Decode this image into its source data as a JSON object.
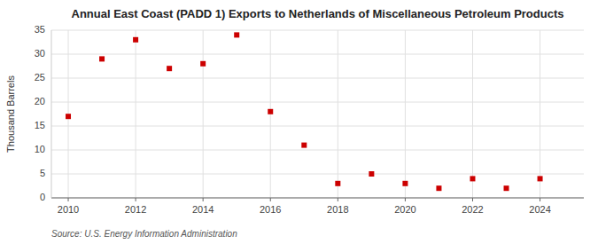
{
  "chart_data": {
    "type": "scatter",
    "title": "Annual East Coast (PADD 1) Exports to Netherlands of Miscellaneous Petroleum Products",
    "y_label": "Thousand Barrels",
    "source": "Source: U.S. Energy Information Administration",
    "x": [
      2010,
      2011,
      2012,
      2013,
      2014,
      2015,
      2016,
      2017,
      2018,
      2019,
      2020,
      2021,
      2022,
      2023,
      2024
    ],
    "values": [
      17,
      29,
      33,
      27,
      28,
      34,
      18,
      11,
      3,
      5,
      3,
      2,
      4,
      2,
      4
    ],
    "color": "#cc0000",
    "marker": "square",
    "xlim": [
      2009.5,
      2025.3
    ],
    "ylim": [
      0,
      35
    ],
    "xticks": [
      2010,
      2012,
      2014,
      2016,
      2018,
      2020,
      2022,
      2024
    ],
    "yticks": [
      0,
      5,
      10,
      15,
      20,
      25,
      30,
      35
    ],
    "grid": true
  }
}
